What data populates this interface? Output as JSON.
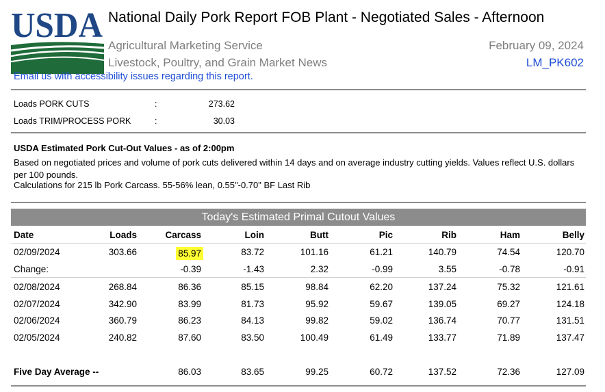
{
  "header": {
    "logo_text": "USDA",
    "title": "National Daily Pork Report FOB Plant - Negotiated Sales - Afternoon",
    "agency": "Agricultural Marketing Service",
    "division": "Livestock, Poultry, and Grain Market News",
    "date": "February 09, 2024",
    "report_code": "LM_PK602",
    "email_link": "Email us with accessibility issues regarding this report."
  },
  "colors": {
    "usda_blue": "#1f4785",
    "usda_green": "#1f6b3a",
    "link": "#1f4ed6",
    "header_bar": "#8c8c8c",
    "highlight": "#ffff33"
  },
  "loads": [
    {
      "label": "Loads PORK CUTS",
      "sep": ":",
      "value": "273.62"
    },
    {
      "label": "Loads TRIM/PROCESS PORK",
      "sep": ":",
      "value": "30.03"
    }
  ],
  "cutout": {
    "heading": "USDA Estimated Pork Cut-Out Values - as of 2:00pm",
    "description": "Based on negotiated prices and volume of pork cuts delivered within 14 days and on average industry cutting yields.  Values reflect U.S. dollars per 100 pounds.",
    "calculation": "Calculations for 215 lb Pork Carcass. 55-56% lean, 0.55\"-0.70\" BF Last Rib"
  },
  "table": {
    "title": "Today's Estimated Primal Cutout Values",
    "columns": [
      "Date",
      "Loads",
      "Carcass",
      "Loin",
      "Butt",
      "Pic",
      "Rib",
      "Ham",
      "Belly"
    ],
    "rows": [
      [
        "02/09/2024",
        "303.66",
        "85.97",
        "83.72",
        "101.16",
        "61.21",
        "140.79",
        "74.54",
        "120.70"
      ],
      [
        "Change:",
        "",
        "-0.39",
        "-1.43",
        "2.32",
        "-0.99",
        "3.55",
        "-0.78",
        "-0.91"
      ],
      [
        "02/08/2024",
        "268.84",
        "86.36",
        "85.15",
        "98.84",
        "62.20",
        "137.24",
        "75.32",
        "121.61"
      ],
      [
        "02/07/2024",
        "342.90",
        "83.99",
        "81.73",
        "95.92",
        "59.67",
        "139.05",
        "69.27",
        "124.18"
      ],
      [
        "02/06/2024",
        "360.79",
        "86.23",
        "84.13",
        "99.82",
        "59.02",
        "136.74",
        "70.77",
        "131.51"
      ],
      [
        "02/05/2024",
        "240.82",
        "87.60",
        "83.50",
        "100.49",
        "61.49",
        "133.77",
        "71.89",
        "137.47"
      ]
    ],
    "average": [
      "Five Day Average --",
      "",
      "86.03",
      "83.65",
      "99.25",
      "60.72",
      "137.52",
      "72.36",
      "127.09"
    ]
  }
}
